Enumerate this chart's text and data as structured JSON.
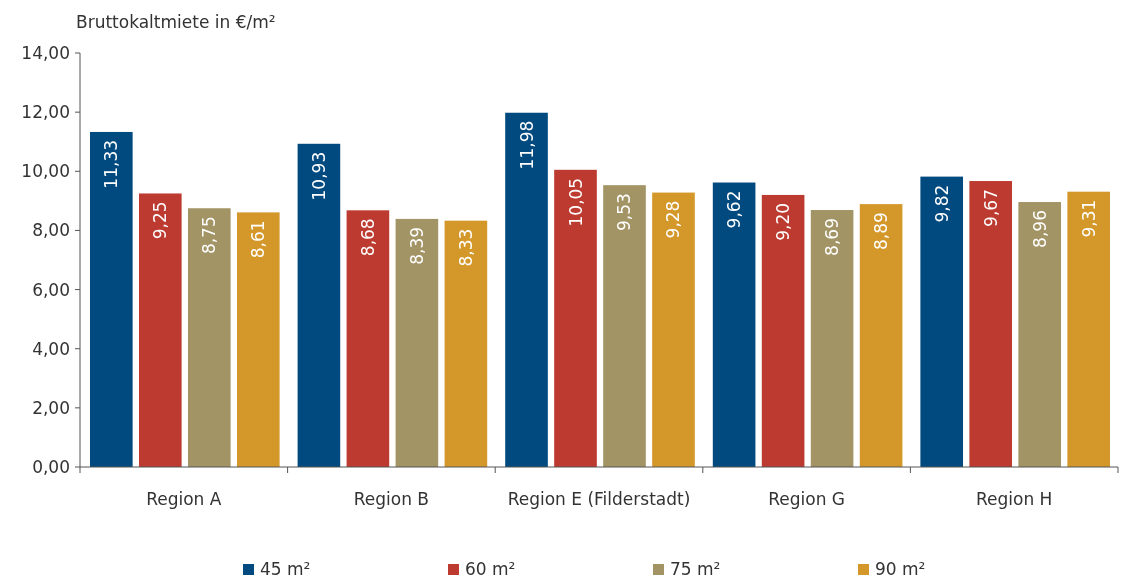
{
  "chart_data": {
    "type": "bar",
    "ylabel": "Bruttokaltmiete in €/m²",
    "categories": [
      "Region A",
      "Region B",
      "Region E (Filderstadt)",
      "Region G",
      "Region H"
    ],
    "series": [
      {
        "name": "45 m²",
        "color": "#004a7f",
        "values": [
          11.33,
          10.93,
          11.98,
          9.62,
          9.82
        ],
        "value_labels": [
          "11,33",
          "10,93",
          "11,98",
          "9,62",
          "9,82"
        ]
      },
      {
        "name": "60 m²",
        "color": "#bc3a2f",
        "values": [
          9.25,
          8.68,
          10.05,
          9.2,
          9.67
        ],
        "value_labels": [
          "9,25",
          "8,68",
          "10,05",
          "9,20",
          "9,67"
        ]
      },
      {
        "name": "75 m²",
        "color": "#a39465",
        "values": [
          8.75,
          8.39,
          9.53,
          8.69,
          8.96
        ],
        "value_labels": [
          "8,75",
          "8,39",
          "9,53",
          "8,69",
          "8,96"
        ]
      },
      {
        "name": "90 m²",
        "color": "#d4982a",
        "values": [
          8.61,
          8.33,
          9.28,
          8.89,
          9.31
        ],
        "value_labels": [
          "8,61",
          "8,33",
          "9,28",
          "8,89",
          "9,31"
        ]
      }
    ],
    "ylim": [
      0,
      14
    ],
    "yticks": [
      {
        "value": 0,
        "label": "0,00"
      },
      {
        "value": 2,
        "label": "2,00"
      },
      {
        "value": 4,
        "label": "4,00"
      },
      {
        "value": 6,
        "label": "6,00"
      },
      {
        "value": 8,
        "label": "8,00"
      },
      {
        "value": 10,
        "label": "10,00"
      },
      {
        "value": 12,
        "label": "12,00"
      },
      {
        "value": 14,
        "label": "14,00"
      }
    ],
    "grid": false,
    "legend": "bottom"
  }
}
